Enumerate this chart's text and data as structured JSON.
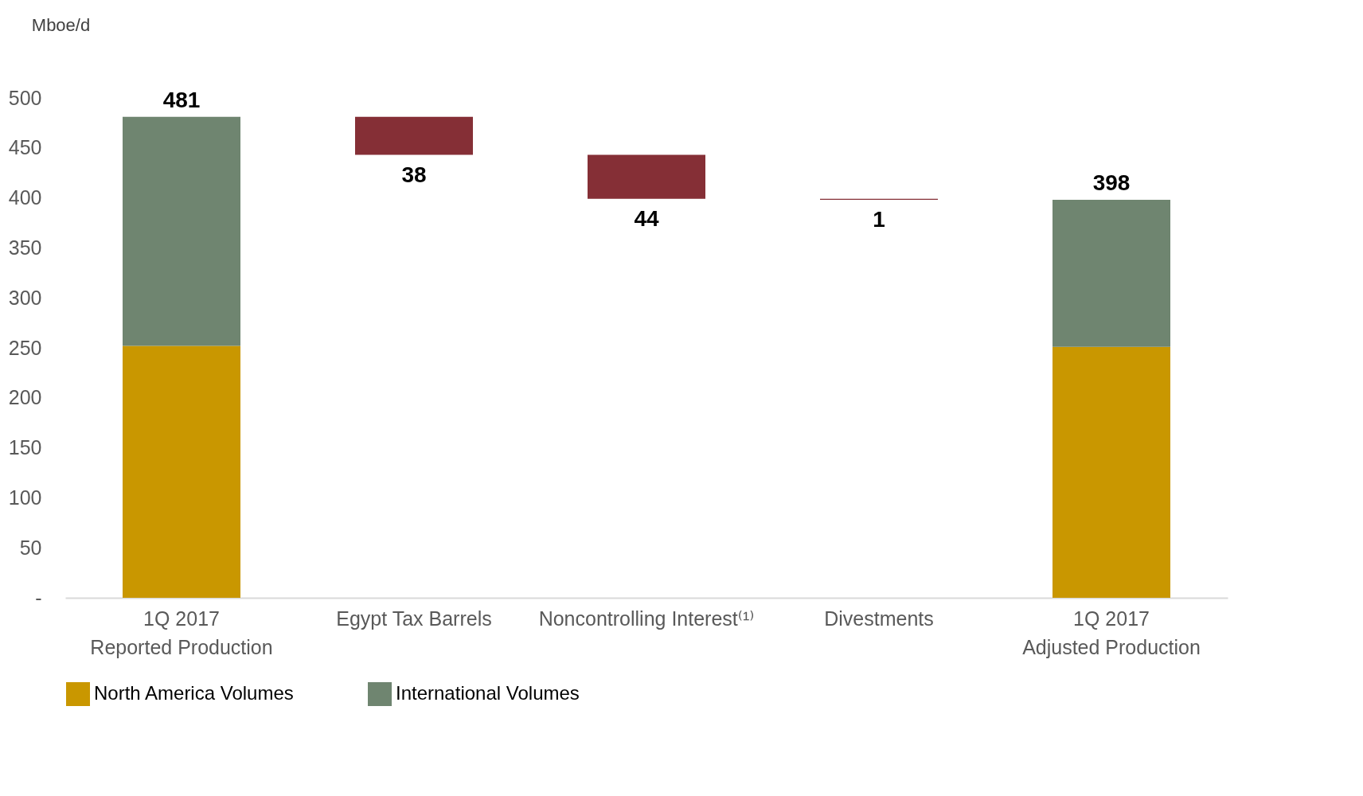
{
  "chart_data": {
    "type": "bar",
    "stacked": true,
    "ylabel": "Mboe/d",
    "categories": [
      "1Q 2017\nReported Production",
      "Egypt Tax Barrels",
      "Noncontrolling Interest⁽¹⁾",
      "Divestments",
      "1Q 2017\nAdjusted Production"
    ],
    "series": [
      {
        "name": "North America Volumes",
        "color": "#c99700",
        "values": [
          252,
          null,
          null,
          null,
          251
        ]
      },
      {
        "name": "International Volumes",
        "color": "#6f8570",
        "values": [
          229,
          null,
          null,
          null,
          147
        ]
      },
      {
        "color": "#852f36",
        "values": [
          null,
          38,
          44,
          1,
          null
        ],
        "base": [
          null,
          443,
          399,
          398,
          null
        ],
        "value_labels": [
          null,
          "38",
          "44",
          "1",
          null
        ]
      }
    ],
    "totals": [
      "481",
      null,
      null,
      null,
      "398"
    ],
    "ylim": [
      0,
      500
    ],
    "yticks": [
      {
        "value": 0,
        "label": "-"
      },
      50,
      100,
      150,
      200,
      250,
      300,
      350,
      400,
      450,
      500
    ],
    "grid": false,
    "legend": "bottom"
  }
}
